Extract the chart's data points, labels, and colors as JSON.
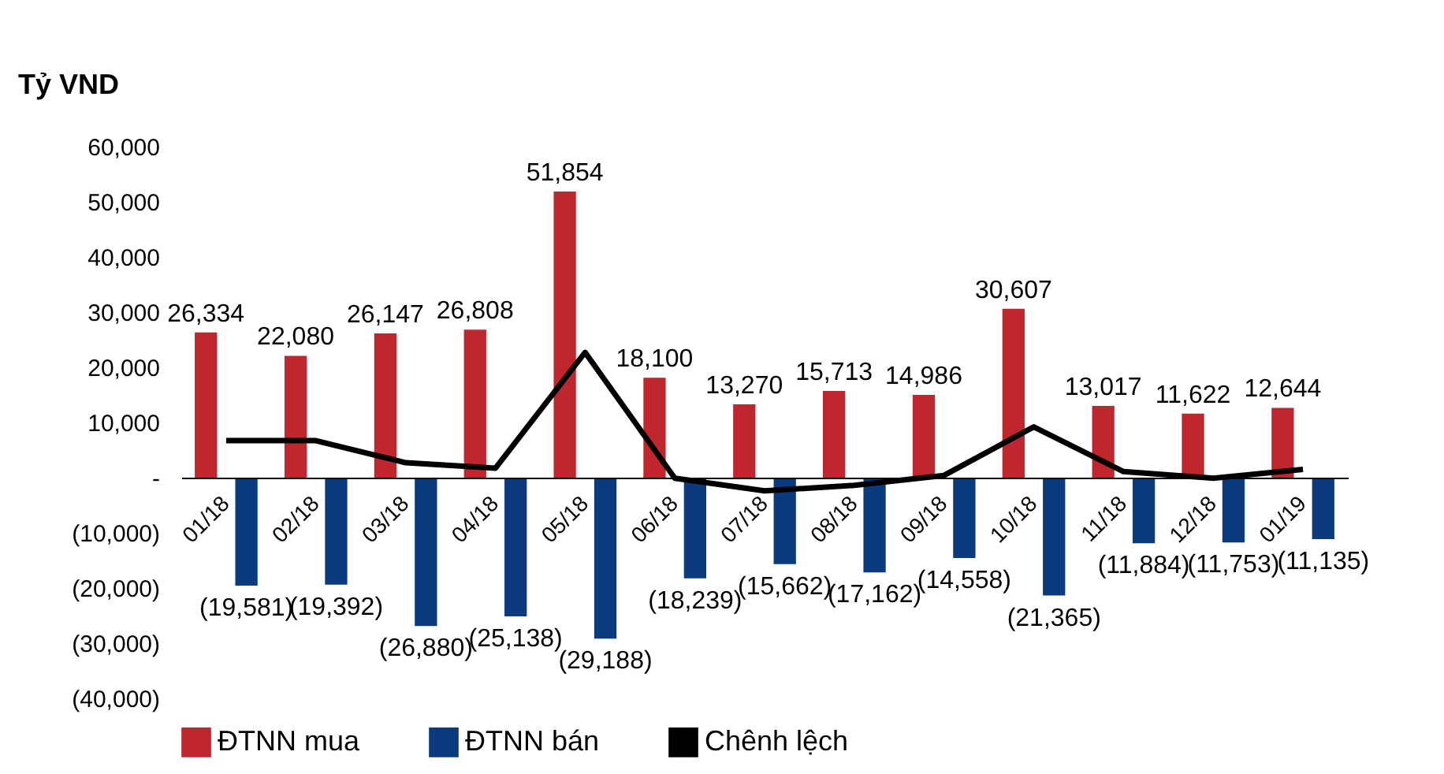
{
  "chart_data": {
    "type": "bar",
    "ylabel": "Tỷ VND",
    "categories": [
      "01/18",
      "02/18",
      "03/18",
      "04/18",
      "05/18",
      "06/18",
      "07/18",
      "08/18",
      "09/18",
      "10/18",
      "11/18",
      "12/18",
      "01/19"
    ],
    "series": [
      {
        "name": "ĐTNN mua",
        "type": "bar",
        "color": "#c0262d",
        "values": [
          26334,
          22080,
          26147,
          26808,
          51854,
          18100,
          13270,
          15713,
          14986,
          30607,
          13017,
          11622,
          12644
        ],
        "value_labels": [
          "26,334",
          "22,080",
          "26,147",
          "26,808",
          "51,854",
          "18,100",
          "13,270",
          "15,713",
          "14,986",
          "30,607",
          "13,017",
          "11,622",
          "12,644"
        ]
      },
      {
        "name": "ĐTNN bán",
        "type": "bar",
        "color": "#0b3a7e",
        "values": [
          -19581,
          -19392,
          -26880,
          -25138,
          -29188,
          -18239,
          -15662,
          -17162,
          -14558,
          -21365,
          -11884,
          -11753,
          -11135
        ],
        "value_labels": [
          "(19,581)",
          "(19,392)",
          "(26,880)",
          "(25,138)",
          "(29,188)",
          "(18,239)",
          "(15,662)",
          "(17,162)",
          "(14,558)",
          "(21,365)",
          "(11,884)",
          "(11,753)",
          "(11,135)"
        ]
      },
      {
        "name": "Chênh lệch",
        "type": "line",
        "color": "#000000",
        "values": [
          6700,
          6700,
          2700,
          1700,
          22700,
          -100,
          -2400,
          -1400,
          400,
          9200,
          1100,
          -100,
          1500
        ]
      }
    ],
    "ylim": [
      -40000,
      60000
    ],
    "yticks": [
      {
        "value": 60000,
        "label": "60,000"
      },
      {
        "value": 50000,
        "label": "50,000"
      },
      {
        "value": 40000,
        "label": "40,000"
      },
      {
        "value": 30000,
        "label": "30,000"
      },
      {
        "value": 20000,
        "label": "20,000"
      },
      {
        "value": 10000,
        "label": "10,000"
      },
      {
        "value": 0,
        "label": "-"
      },
      {
        "value": -10000,
        "label": "(10,000)"
      },
      {
        "value": -20000,
        "label": "(20,000)"
      },
      {
        "value": -30000,
        "label": "(30,000)"
      },
      {
        "value": -40000,
        "label": "(40,000)"
      }
    ],
    "grid": false,
    "legend": "bottom"
  }
}
